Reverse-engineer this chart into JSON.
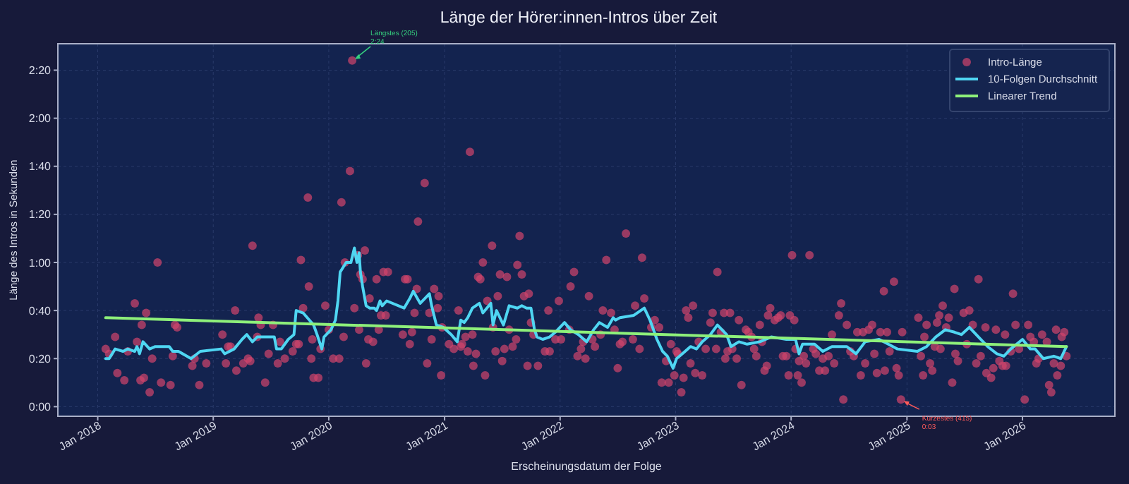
{
  "chart_data": {
    "type": "scatter",
    "title": "Länge der Hörer:innen-Intros über Zeit",
    "xlabel": "Erscheinungsdatum der Folge",
    "ylabel": "Länge des Intros in Sekunden",
    "xlim": [
      "2017-08-28",
      "2026-10-20"
    ],
    "xticks": [
      {
        "value": "2018-01-01",
        "label": "Jan 2018"
      },
      {
        "value": "2019-01-01",
        "label": "Jan 2019"
      },
      {
        "value": "2020-01-01",
        "label": "Jan 2020"
      },
      {
        "value": "2021-01-01",
        "label": "Jan 2021"
      },
      {
        "value": "2022-01-01",
        "label": "Jan 2022"
      },
      {
        "value": "2023-01-01",
        "label": "Jan 2023"
      },
      {
        "value": "2024-01-01",
        "label": "Jan 2024"
      },
      {
        "value": "2025-01-01",
        "label": "Jan 2025"
      },
      {
        "value": "2026-01-01",
        "label": "Jan 2026"
      }
    ],
    "ylim": [
      -4,
      151
    ],
    "yticks": [
      {
        "value": 0,
        "label": "0:00"
      },
      {
        "value": 20,
        "label": "0:20"
      },
      {
        "value": 40,
        "label": "0:40"
      },
      {
        "value": 60,
        "label": "1:00"
      },
      {
        "value": 80,
        "label": "1:20"
      },
      {
        "value": 100,
        "label": "1:40"
      },
      {
        "value": 120,
        "label": "2:00"
      },
      {
        "value": 140,
        "label": "2:20"
      }
    ],
    "grid": true,
    "legend": "top right",
    "annotations": [
      {
        "text": "Längstes (205)\n2:24",
        "x": "2020-03-15",
        "y": 144
      },
      {
        "text": "Kürzestes (415)\n0:03",
        "x": "2024-12-13",
        "y": 3
      }
    ],
    "series": [
      {
        "name": "Intro-Länge",
        "marker": "circle",
        "color": "#d1456c",
        "x": [
          "2018-01-26",
          "2018-02-06",
          "2018-02-25",
          "2018-03-04",
          "2018-03-26",
          "2018-04-06",
          "2018-04-28",
          "2018-05-05",
          "2018-05-16",
          "2018-05-20",
          "2018-05-27",
          "2018-06-03",
          "2018-06-14",
          "2018-06-22",
          "2018-07-09",
          "2018-07-20",
          "2018-08-19",
          "2018-08-26",
          "2018-09-02",
          "2018-09-09",
          "2018-10-27",
          "2018-11-03",
          "2018-11-18",
          "2018-12-10",
          "2019-01-30",
          "2019-02-10",
          "2019-02-17",
          "2019-02-25",
          "2019-03-11",
          "2019-03-15",
          "2019-04-06",
          "2019-04-21",
          "2019-04-28",
          "2019-05-05",
          "2019-05-20",
          "2019-05-24",
          "2019-05-31",
          "2019-06-14",
          "2019-06-25",
          "2019-07-09",
          "2019-07-24",
          "2019-07-31",
          "2019-08-15",
          "2019-09-09",
          "2019-09-20",
          "2019-09-28",
          "2019-10-05",
          "2019-10-12",
          "2019-10-27",
          "2019-10-30",
          "2019-11-07",
          "2019-11-10",
          "2019-11-14",
          "2019-11-29",
          "2019-12-06",
          "2019-12-21",
          "2020-01-01",
          "2020-01-15",
          "2020-02-03",
          "2020-02-10",
          "2020-02-17",
          "2020-02-21",
          "2020-03-08",
          "2020-03-15",
          "2020-03-22",
          "2020-04-02",
          "2020-04-06",
          "2020-04-10",
          "2020-04-17",
          "2020-04-24",
          "2020-04-28",
          "2020-05-05",
          "2020-05-09",
          "2020-05-20",
          "2020-05-31",
          "2020-06-07",
          "2020-06-14",
          "2020-06-22",
          "2020-06-29",
          "2020-07-06",
          "2020-08-22",
          "2020-08-29",
          "2020-09-06",
          "2020-09-13",
          "2020-09-20",
          "2020-09-28",
          "2020-10-05",
          "2020-10-09",
          "2020-10-30",
          "2020-11-07",
          "2020-11-14",
          "2020-11-21",
          "2020-11-29",
          "2020-12-10",
          "2020-12-13",
          "2020-12-21",
          "2020-12-24",
          "2021-01-15",
          "2021-01-30",
          "2021-02-14",
          "2021-02-21",
          "2021-02-25",
          "2021-03-08",
          "2021-03-15",
          "2021-03-22",
          "2021-03-30",
          "2021-04-02",
          "2021-04-10",
          "2021-04-17",
          "2021-04-24",
          "2021-05-02",
          "2021-05-09",
          "2021-05-16",
          "2021-05-31",
          "2021-06-03",
          "2021-06-11",
          "2021-06-18",
          "2021-06-25",
          "2021-07-02",
          "2021-07-09",
          "2021-07-17",
          "2021-07-24",
          "2021-08-04",
          "2021-08-15",
          "2021-08-19",
          "2021-08-26",
          "2021-09-02",
          "2021-09-09",
          "2021-09-20",
          "2021-09-24",
          "2021-10-01",
          "2021-10-09",
          "2021-10-23",
          "2021-11-14",
          "2021-11-25",
          "2021-11-29",
          "2021-12-17",
          "2021-12-28",
          "2022-01-04",
          "2022-01-30",
          "2022-02-03",
          "2022-02-14",
          "2022-02-25",
          "2022-03-08",
          "2022-03-15",
          "2022-03-22",
          "2022-04-02",
          "2022-04-13",
          "2022-04-21",
          "2022-05-09",
          "2022-05-16",
          "2022-05-27",
          "2022-06-11",
          "2022-06-22",
          "2022-07-02",
          "2022-07-09",
          "2022-07-17",
          "2022-07-28",
          "2022-08-19",
          "2022-08-26",
          "2022-09-09",
          "2022-09-17",
          "2022-09-24",
          "2022-10-16",
          "2022-10-27",
          "2022-11-10",
          "2022-11-18",
          "2022-12-02",
          "2022-12-10",
          "2022-12-17",
          "2022-12-28",
          "2023-01-04",
          "2023-01-08",
          "2023-01-19",
          "2023-01-26",
          "2023-02-03",
          "2023-02-10",
          "2023-02-17",
          "2023-02-25",
          "2023-03-04",
          "2023-03-15",
          "2023-03-26",
          "2023-04-06",
          "2023-04-21",
          "2023-04-28",
          "2023-05-09",
          "2023-05-13",
          "2023-05-24",
          "2023-06-03",
          "2023-06-07",
          "2023-06-14",
          "2023-06-22",
          "2023-06-29",
          "2023-07-13",
          "2023-07-20",
          "2023-07-28",
          "2023-08-11",
          "2023-08-19",
          "2023-08-29",
          "2023-09-06",
          "2023-09-13",
          "2023-09-24",
          "2023-10-01",
          "2023-10-09",
          "2023-10-16",
          "2023-10-20",
          "2023-10-27",
          "2023-11-10",
          "2023-11-21",
          "2023-11-29",
          "2023-12-06",
          "2023-12-17",
          "2023-12-24",
          "2023-12-28",
          "2024-01-04",
          "2024-01-11",
          "2024-01-15",
          "2024-01-22",
          "2024-01-26",
          "2024-02-03",
          "2024-02-10",
          "2024-02-17",
          "2024-02-28",
          "2024-03-11",
          "2024-03-19",
          "2024-03-30",
          "2024-04-10",
          "2024-04-17",
          "2024-04-28",
          "2024-05-09",
          "2024-05-16",
          "2024-05-31",
          "2024-06-07",
          "2024-06-14",
          "2024-06-25",
          "2024-07-06",
          "2024-07-17",
          "2024-07-28",
          "2024-08-08",
          "2024-08-15",
          "2024-08-22",
          "2024-09-02",
          "2024-09-13",
          "2024-09-20",
          "2024-09-28",
          "2024-10-09",
          "2024-10-20",
          "2024-10-23",
          "2024-10-30",
          "2024-11-07",
          "2024-11-21",
          "2024-11-29",
          "2024-12-06",
          "2024-12-13",
          "2024-12-17",
          "2025-02-06",
          "2025-02-14",
          "2025-02-21",
          "2025-02-25",
          "2025-03-04",
          "2025-03-15",
          "2025-03-22",
          "2025-03-30",
          "2025-04-06",
          "2025-04-13",
          "2025-04-17",
          "2025-04-24",
          "2025-05-05",
          "2025-05-13",
          "2025-05-24",
          "2025-05-31",
          "2025-06-03",
          "2025-06-11",
          "2025-06-29",
          "2025-07-09",
          "2025-07-17",
          "2025-07-28",
          "2025-08-08",
          "2025-08-15",
          "2025-08-22",
          "2025-09-06",
          "2025-09-09",
          "2025-09-24",
          "2025-10-01",
          "2025-10-09",
          "2025-10-20",
          "2025-10-30",
          "2025-11-07",
          "2025-11-10",
          "2025-11-25",
          "2025-12-02",
          "2025-12-10",
          "2025-12-21",
          "2026-01-08",
          "2026-01-19",
          "2026-01-26",
          "2026-02-06",
          "2026-02-14",
          "2026-02-21",
          "2026-03-04",
          "2026-03-19",
          "2026-03-26",
          "2026-04-02",
          "2026-04-10",
          "2026-04-17",
          "2026-04-21",
          "2026-05-02",
          "2026-05-05",
          "2026-05-13",
          "2026-05-20"
        ],
        "values": [
          24,
          22,
          29,
          14,
          11,
          23,
          43,
          27,
          11,
          34,
          12,
          39,
          6,
          20,
          60,
          10,
          9,
          21,
          34,
          33,
          17,
          20,
          9,
          18,
          30,
          18,
          25,
          25,
          40,
          15,
          18,
          20,
          19,
          67,
          29,
          37,
          34,
          10,
          22,
          34,
          18,
          27,
          20,
          23,
          26,
          26,
          61,
          41,
          87,
          50,
          20,
          28,
          12,
          12,
          24,
          42,
          32,
          20,
          20,
          85,
          29,
          60,
          98,
          144,
          41,
          63,
          32,
          55,
          53,
          65,
          18,
          28,
          45,
          27,
          53,
          32,
          38,
          56,
          38,
          56,
          30,
          53,
          53,
          26,
          31,
          39,
          49,
          77,
          93,
          18,
          39,
          28,
          49,
          41,
          46,
          13,
          33,
          26,
          24,
          40,
          25,
          26,
          29,
          23,
          106,
          30,
          17,
          22,
          54,
          53,
          60,
          13,
          44,
          67,
          33,
          23,
          46,
          55,
          19,
          24,
          54,
          32,
          25,
          28,
          59,
          71,
          55,
          46,
          17,
          47,
          35,
          30,
          17,
          23,
          40,
          23,
          28,
          44,
          28,
          32,
          50,
          56,
          21,
          24,
          27,
          20,
          46,
          28,
          25,
          30,
          40,
          61,
          39,
          32,
          16,
          26,
          27,
          72,
          28,
          42,
          24,
          62,
          45,
          33,
          36,
          33,
          10,
          19,
          10,
          26,
          13,
          23,
          22,
          6,
          12,
          40,
          37,
          18,
          42,
          14,
          27,
          13,
          24,
          35,
          39,
          24,
          56,
          31,
          39,
          20,
          23,
          39,
          24,
          20,
          36,
          9,
          32,
          31,
          29,
          24,
          21,
          34,
          27,
          15,
          17,
          38,
          41,
          36,
          37,
          38,
          21,
          21,
          13,
          38,
          63,
          36,
          24,
          13,
          19,
          10,
          21,
          18,
          63,
          24,
          22,
          15,
          20,
          15,
          21,
          30,
          18,
          38,
          43,
          3,
          34,
          23,
          21,
          31,
          13,
          31,
          18,
          32,
          34,
          22,
          14,
          31,
          48,
          15,
          31,
          23,
          52,
          16,
          13,
          3,
          31,
          37,
          21,
          13,
          29,
          34,
          18,
          15,
          25,
          35,
          38,
          24,
          42,
          33,
          37,
          10,
          49,
          22,
          19,
          39,
          26,
          40,
          34,
          18,
          53,
          21,
          33,
          14,
          12,
          16,
          32,
          19,
          17,
          30,
          17,
          23,
          47,
          34,
          24,
          3,
          34,
          29,
          27,
          18,
          20,
          30,
          27,
          9,
          6,
          18,
          32,
          13,
          17,
          29,
          31,
          21
        ]
      },
      {
        "name": "10-Folgen Durchschnitt",
        "type": "line",
        "line_style": "solid",
        "color": "#4fd6f2",
        "x": [
          "2018-01-26",
          "2018-02-06",
          "2018-02-25",
          "2018-03-22",
          "2018-04-06",
          "2018-04-28",
          "2018-05-05",
          "2018-05-13",
          "2018-05-24",
          "2018-06-14",
          "2018-07-02",
          "2018-08-15",
          "2018-08-26",
          "2018-09-13",
          "2018-10-23",
          "2018-11-21",
          "2019-01-26",
          "2019-02-06",
          "2019-03-08",
          "2019-04-02",
          "2019-04-17",
          "2019-05-05",
          "2019-05-20",
          "2019-06-18",
          "2019-07-13",
          "2019-07-20",
          "2019-08-04",
          "2019-08-26",
          "2019-09-13",
          "2019-09-20",
          "2019-10-12",
          "2019-11-14",
          "2019-11-25",
          "2019-12-10",
          "2019-12-17",
          "2020-01-08",
          "2020-01-22",
          "2020-01-30",
          "2020-02-06",
          "2020-02-25",
          "2020-03-11",
          "2020-03-22",
          "2020-03-30",
          "2020-04-06",
          "2020-04-10",
          "2020-04-17",
          "2020-04-28",
          "2020-05-09",
          "2020-05-24",
          "2020-05-31",
          "2020-06-11",
          "2020-06-18",
          "2020-07-02",
          "2020-08-26",
          "2020-09-13",
          "2020-09-24",
          "2020-10-16",
          "2020-11-14",
          "2020-11-21",
          "2020-12-06",
          "2020-12-28",
          "2021-01-22",
          "2021-02-10",
          "2021-02-21",
          "2021-03-04",
          "2021-03-15",
          "2021-03-30",
          "2021-04-21",
          "2021-05-02",
          "2021-05-27",
          "2021-06-03",
          "2021-06-14",
          "2021-07-06",
          "2021-07-24",
          "2021-08-19",
          "2021-09-02",
          "2021-09-17",
          "2021-10-01",
          "2021-10-12",
          "2021-10-20",
          "2021-11-07",
          "2021-11-29",
          "2021-12-17",
          "2022-01-15",
          "2022-02-03",
          "2022-02-28",
          "2022-03-26",
          "2022-04-17",
          "2022-05-05",
          "2022-05-31",
          "2022-06-18",
          "2022-06-25",
          "2022-07-09",
          "2022-08-22",
          "2022-09-24",
          "2022-10-12",
          "2022-11-03",
          "2022-11-21",
          "2022-12-06",
          "2022-12-24",
          "2023-01-04",
          "2023-01-22",
          "2023-02-17",
          "2023-03-08",
          "2023-03-26",
          "2023-04-21",
          "2023-05-13",
          "2023-06-11",
          "2023-06-25",
          "2023-07-20",
          "2023-08-15",
          "2023-09-24",
          "2023-10-30",
          "2023-12-17",
          "2024-01-15",
          "2024-01-26",
          "2024-02-06",
          "2024-03-15",
          "2024-04-10",
          "2024-05-09",
          "2024-06-25",
          "2024-07-24",
          "2024-08-22",
          "2024-10-05",
          "2024-11-03",
          "2024-12-02",
          "2025-02-03",
          "2025-03-04",
          "2025-04-02",
          "2025-05-02",
          "2025-05-31",
          "2025-06-22",
          "2025-07-17",
          "2025-08-15",
          "2025-09-13",
          "2025-10-12",
          "2025-11-03",
          "2025-11-25",
          "2026-01-01",
          "2026-01-26",
          "2026-02-10",
          "2026-03-08",
          "2026-04-10",
          "2026-05-02",
          "2026-05-20"
        ],
        "values": [
          20,
          20,
          24,
          23,
          24,
          23,
          25,
          22,
          27,
          24,
          25,
          25,
          23,
          23,
          20,
          23,
          24,
          22,
          24,
          28,
          30,
          27,
          29,
          29,
          29,
          24,
          24,
          28,
          30,
          40,
          39,
          34,
          30,
          24,
          29,
          32,
          36,
          44,
          56,
          60,
          60,
          66,
          60,
          64,
          56,
          50,
          42,
          41,
          41,
          40,
          44,
          42,
          44,
          41,
          45,
          48,
          43,
          47,
          42,
          34,
          33,
          30,
          27,
          36,
          35,
          37,
          41,
          43,
          39,
          43,
          34,
          40,
          34,
          42,
          41,
          42,
          41,
          41,
          32,
          29,
          28,
          29,
          31,
          35,
          32,
          30,
          27,
          32,
          35,
          33,
          37,
          36,
          37,
          38,
          41,
          36,
          28,
          23,
          21,
          16,
          20,
          22,
          25,
          24,
          27,
          30,
          34,
          30,
          25,
          27,
          26,
          27,
          29,
          28,
          28,
          22,
          26,
          26,
          23,
          25,
          25,
          22,
          27,
          28,
          26,
          24,
          23,
          25,
          29,
          32,
          31,
          30,
          33,
          29,
          25,
          22,
          21,
          24,
          28,
          24,
          24,
          20,
          21,
          20,
          25
        ]
      },
      {
        "name": "Linearer Trend",
        "type": "line",
        "line_style": "solid",
        "color": "#8ef07a",
        "x": [
          "2018-01-26",
          "2026-05-20"
        ],
        "values": [
          37,
          25
        ]
      }
    ]
  }
}
